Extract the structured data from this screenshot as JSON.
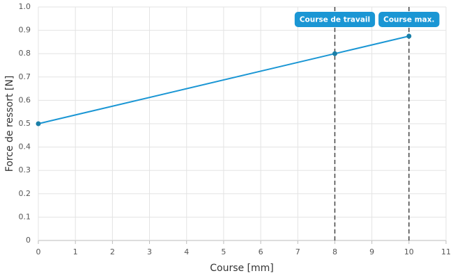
{
  "chart_data": {
    "type": "line",
    "x_label": "Course [mm]",
    "y_label": "Force de ressort [N]",
    "x": [
      0,
      8,
      10
    ],
    "series": [
      {
        "color": "#1a96d4",
        "marker_color": "#1a7fa8",
        "values": [
          0.5,
          0.8,
          0.875
        ]
      }
    ],
    "xlim": [
      0,
      11
    ],
    "xticks": [
      0,
      1,
      2,
      3,
      4,
      5,
      6,
      7,
      8,
      9,
      10,
      11
    ],
    "ylim": [
      0,
      1
    ],
    "yticks": [
      0,
      0.1,
      0.2,
      0.3,
      0.4,
      0.5,
      0.6,
      0.7,
      0.8,
      0.9,
      {
        "value": 1,
        "label": "1.0"
      }
    ],
    "grid": true,
    "annotations": [
      {
        "x": 8,
        "label": "Course de travail",
        "color": "#1a96d4"
      },
      {
        "x": 10,
        "label": "Course max.",
        "color": "#1a96d4"
      }
    ]
  }
}
